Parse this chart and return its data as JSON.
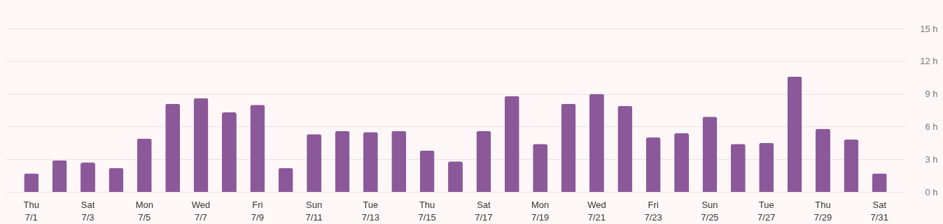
{
  "chart_data": {
    "type": "bar",
    "categories": [
      "Thu\n7/1",
      null,
      "Sat\n7/3",
      null,
      "Mon\n7/5",
      null,
      "Wed\n7/7",
      null,
      "Fri\n7/9",
      null,
      "Sun\n7/11",
      null,
      "Tue\n7/13",
      null,
      "Thu\n7/15",
      null,
      "Sat\n7/17",
      null,
      "Mon\n7/19",
      null,
      "Wed\n7/21",
      null,
      "Fri\n7/23",
      null,
      "Sun\n7/25",
      null,
      "Tue\n7/27",
      null,
      "Thu\n7/29",
      null,
      "Sat\n7/31"
    ],
    "values": [
      1.7,
      2.9,
      2.7,
      2.2,
      4.9,
      8.1,
      8.6,
      7.3,
      8.0,
      2.2,
      5.3,
      5.6,
      5.5,
      5.6,
      3.8,
      2.8,
      5.6,
      8.8,
      4.4,
      8.1,
      9.0,
      7.9,
      5.0,
      5.4,
      6.9,
      4.4,
      4.5,
      10.6,
      5.8,
      4.8,
      1.7
    ],
    "color": "#8b5899",
    "ylim": [
      0,
      15
    ],
    "yticks": [
      {
        "value": 0,
        "label": "0 h"
      },
      {
        "value": 3,
        "label": "3 h"
      },
      {
        "value": 6,
        "label": "6 h"
      },
      {
        "value": 9,
        "label": "9 h"
      },
      {
        "value": 12,
        "label": "12 h"
      },
      {
        "value": 15,
        "label": "15 h"
      }
    ],
    "grid": "y"
  }
}
